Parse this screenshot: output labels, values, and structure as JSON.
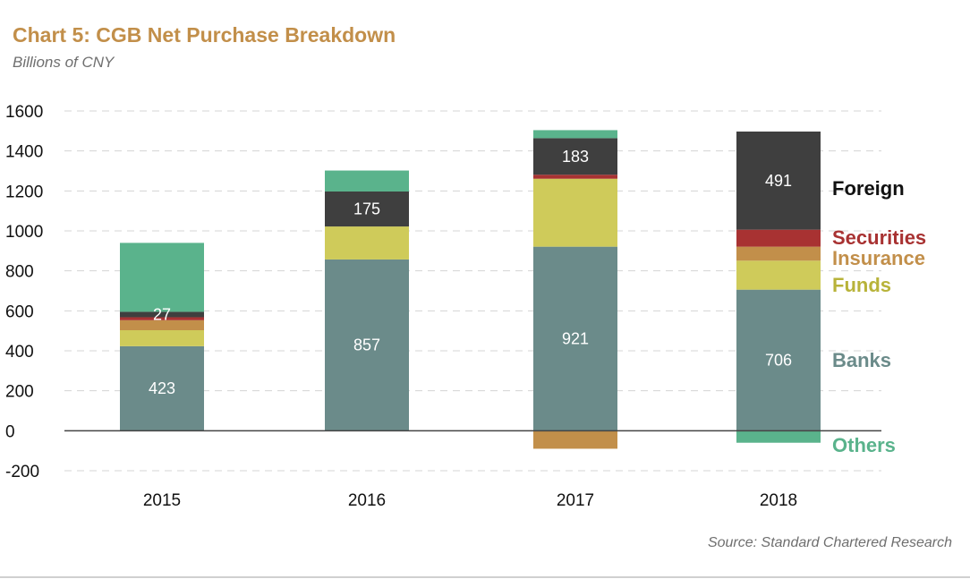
{
  "title": "Chart 5: CGB Net Purchase Breakdown",
  "subtitle": "Billions of CNY",
  "source": "Source: Standard Chartered Research",
  "colors": {
    "Banks": "#6b8b8a",
    "Funds": "#cfcb5a",
    "Insurance": "#c28f4a",
    "Securities": "#a83232",
    "Foreign": "#3f3f3f",
    "Others": "#5ab38c"
  },
  "chart_data": {
    "type": "bar",
    "stacked": true,
    "categories": [
      "2015",
      "2016",
      "2017",
      "2018"
    ],
    "series": [
      {
        "name": "Banks",
        "values": [
          423,
          857,
          921,
          706
        ]
      },
      {
        "name": "Funds",
        "values": [
          80,
          165,
          340,
          145
        ]
      },
      {
        "name": "Insurance",
        "values": [
          50,
          0,
          -90,
          70
        ]
      },
      {
        "name": "Securities",
        "values": [
          15,
          0,
          20,
          85
        ]
      },
      {
        "name": "Foreign",
        "values": [
          27,
          175,
          183,
          491
        ]
      },
      {
        "name": "Others",
        "values": [
          345,
          105,
          40,
          -60
        ]
      }
    ],
    "data_labels": [
      {
        "category": "2015",
        "series": "Banks",
        "text": "423"
      },
      {
        "category": "2015",
        "series": "Foreign",
        "text": "27"
      },
      {
        "category": "2016",
        "series": "Banks",
        "text": "857"
      },
      {
        "category": "2016",
        "series": "Foreign",
        "text": "175"
      },
      {
        "category": "2017",
        "series": "Banks",
        "text": "921"
      },
      {
        "category": "2017",
        "series": "Foreign",
        "text": "183"
      },
      {
        "category": "2018",
        "series": "Banks",
        "text": "706"
      },
      {
        "category": "2018",
        "series": "Foreign",
        "text": "491"
      }
    ],
    "ylim": [
      -200,
      1600
    ],
    "yticks": [
      "-200",
      "0",
      "200",
      "400",
      "600",
      "800",
      "1000",
      "1200",
      "1400",
      "1600"
    ],
    "grid": true,
    "legend": [
      {
        "name": "Foreign",
        "color": "#111111"
      },
      {
        "name": "Securities",
        "color": "#a83232"
      },
      {
        "name": "Insurance",
        "color": "#c28f4a"
      },
      {
        "name": "Funds",
        "color": "#b8b33a"
      },
      {
        "name": "Banks",
        "color": "#6b8b8a"
      },
      {
        "name": "Others",
        "color": "#5ab38c"
      }
    ],
    "legend_position": "right of last bar"
  }
}
